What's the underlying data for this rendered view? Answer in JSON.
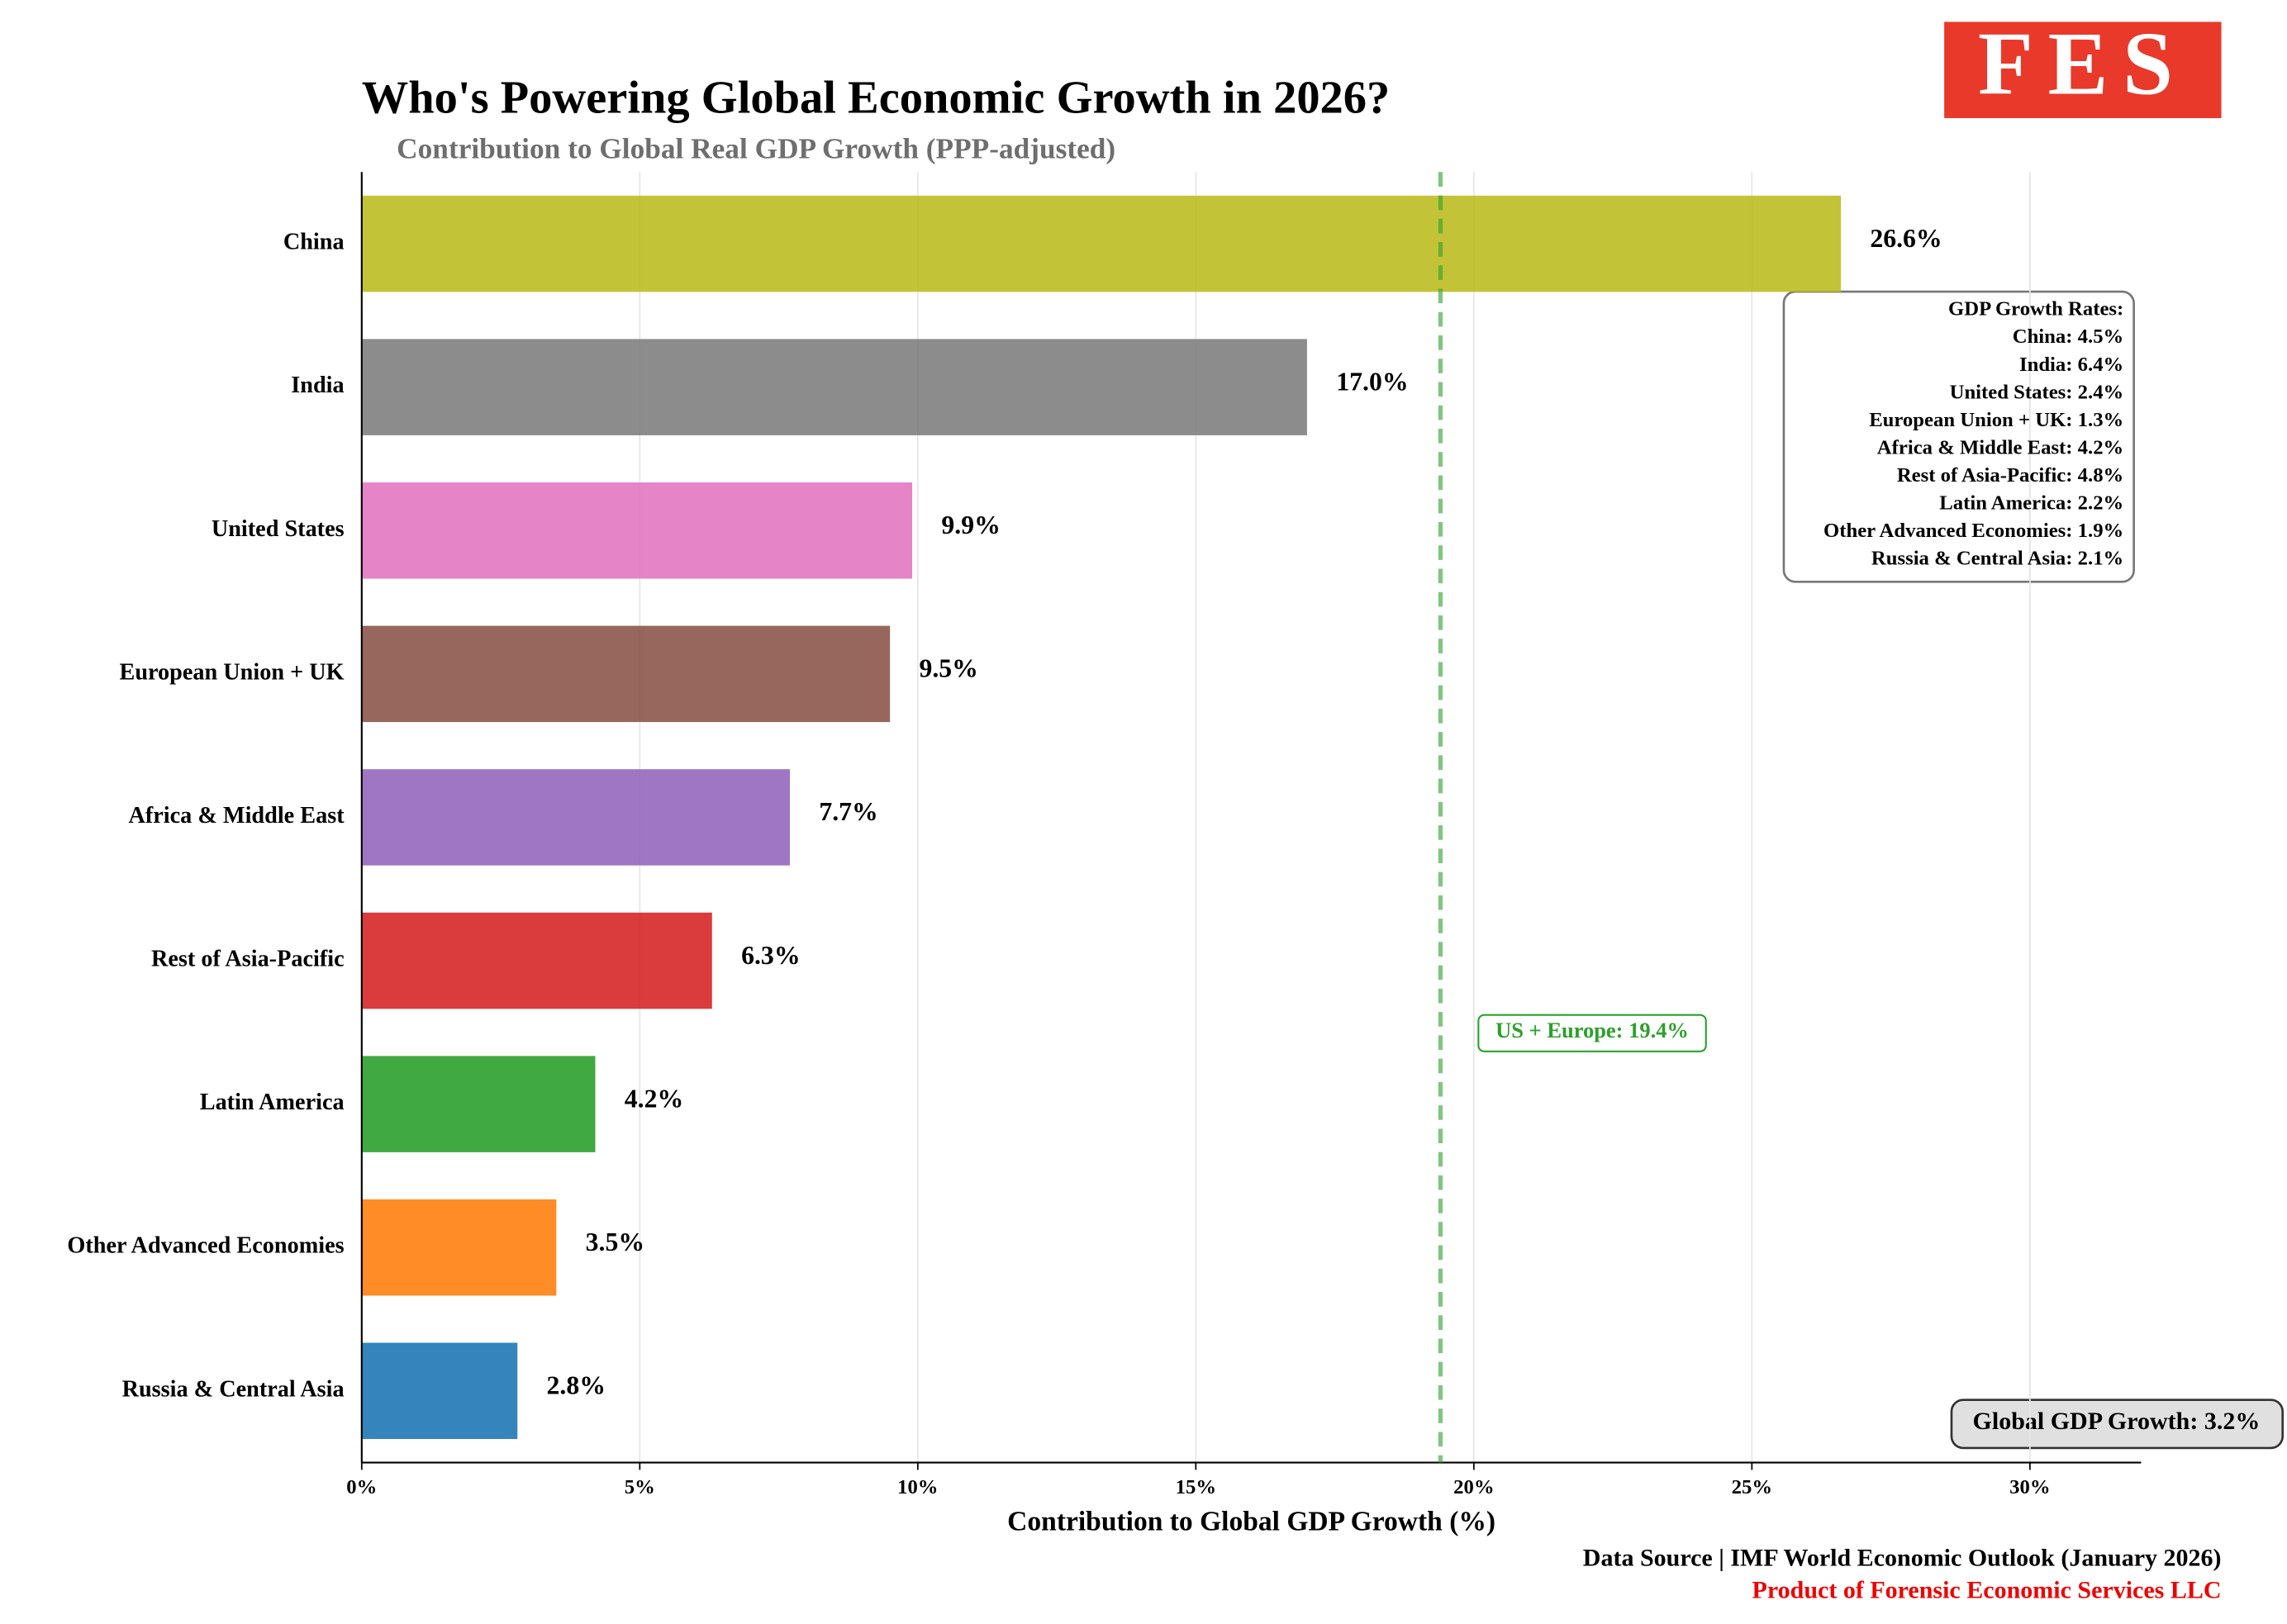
{
  "chart_data": {
    "type": "hbar",
    "title": "Who's Powering Global Economic Growth in 2026?",
    "subtitle": "Contribution to Global Real GDP Growth (PPP-adjusted)",
    "x_label": "Contribution to Global GDP Growth (%)",
    "categories": [
      "China",
      "India",
      "United States",
      "European Union + UK",
      "Africa & Middle East",
      "Rest of Asia-Pacific",
      "Latin America",
      "Other Advanced Economies",
      "Russia & Central Asia"
    ],
    "values": [
      26.6,
      17.0,
      9.9,
      9.5,
      7.7,
      6.3,
      4.2,
      3.5,
      2.8
    ],
    "value_labels": [
      "26.6%",
      "17.0%",
      "9.9%",
      "9.5%",
      "7.7%",
      "6.3%",
      "4.2%",
      "3.5%",
      "2.8%"
    ],
    "colors": [
      "#bcbd22",
      "#7f7f7f",
      "#e377c2",
      "#8c564b",
      "#9467bd",
      "#d62728",
      "#2ca02c",
      "#ff7f0e",
      "#1f77b4"
    ],
    "xlim": [
      0,
      32
    ],
    "xticks": [
      {
        "value": 0,
        "label": "0%"
      },
      {
        "value": 5,
        "label": "5%"
      },
      {
        "value": 10,
        "label": "10%"
      },
      {
        "value": 15,
        "label": "15%"
      },
      {
        "value": 20,
        "label": "20%"
      },
      {
        "value": 25,
        "label": "25%"
      },
      {
        "value": 30,
        "label": "30%"
      }
    ],
    "grid": true,
    "reference_line": {
      "value": 19.4,
      "label": "US + Europe: 19.4%",
      "color": "#2ca02c"
    },
    "growth_rates": {
      "title": "GDP Growth Rates:",
      "lines": [
        "China: 4.5%",
        "India: 6.4%",
        "United States: 2.4%",
        "European Union + UK: 1.3%",
        "Africa & Middle East: 4.2%",
        "Rest of Asia-Pacific: 4.8%",
        "Latin America: 2.2%",
        "Other Advanced Economies: 1.9%",
        "Russia & Central Asia: 2.1%"
      ]
    },
    "global_note": "Global GDP Growth: 3.2%",
    "source": "Data Source | IMF World Economic Outlook (January 2026)",
    "credit": "Product of Forensic Economic Services LLC",
    "logo": "FES"
  }
}
